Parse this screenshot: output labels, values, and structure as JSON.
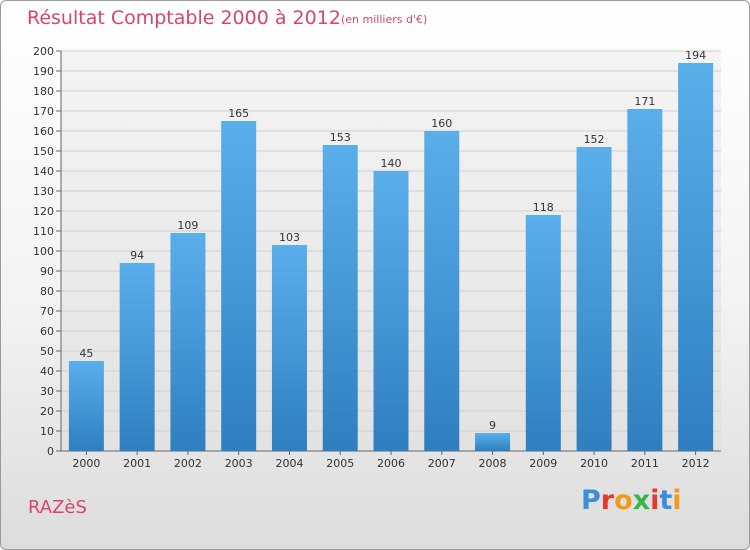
{
  "chart_data": {
    "type": "bar",
    "title": "Résultat Comptable 2000 à 2012",
    "subtitle": "(en milliers d'€)",
    "categories": [
      "2000",
      "2001",
      "2002",
      "2003",
      "2004",
      "2005",
      "2006",
      "2007",
      "2008",
      "2009",
      "2010",
      "2011",
      "2012"
    ],
    "values": [
      45,
      94,
      109,
      165,
      103,
      153,
      140,
      160,
      9,
      118,
      152,
      171,
      194
    ],
    "ylim": [
      0,
      200
    ],
    "ytick_step": 10,
    "grid": true,
    "bar_color_top": "#5aaeea",
    "bar_color_bottom": "#2f7fc0",
    "grid_color": "#cfcfcf"
  },
  "footer": {
    "town": "RAZèS",
    "logo_letters": [
      "P",
      "r",
      "o",
      "x",
      "i",
      "t",
      "i"
    ]
  }
}
